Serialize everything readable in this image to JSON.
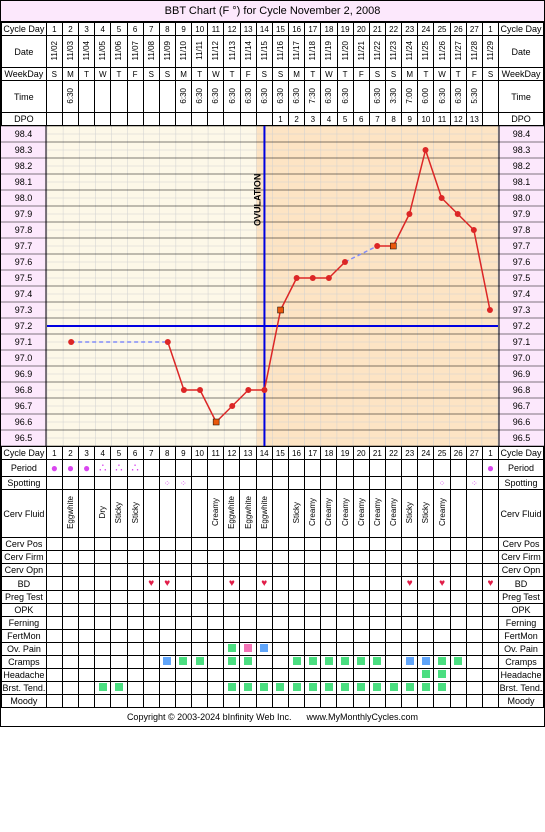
{
  "title": "BBT Chart (F °) for Cycle November 2, 2008",
  "row_labels": {
    "cycle_day": "Cycle Day",
    "date": "Date",
    "weekday": "WeekDay",
    "time": "Time",
    "dpo": "DPO",
    "period": "Period",
    "spotting": "Spotting",
    "cerv_fluid": "Cerv Fluid",
    "cerv_pos": "Cerv Pos",
    "cerv_firm": "Cerv Firm",
    "cerv_opn": "Cerv Opn",
    "bd": "BD",
    "preg_test": "Preg Test",
    "opk": "OPK",
    "ferning": "Ferning",
    "fertmon": "FertMon",
    "ov_pain": "Ov. Pain",
    "cramps": "Cramps",
    "headache": "Headache",
    "brst_tend": "Brst. Tend.",
    "moody": "Moody"
  },
  "cycle_days": [
    "1",
    "2",
    "3",
    "4",
    "5",
    "6",
    "7",
    "8",
    "9",
    "10",
    "11",
    "12",
    "13",
    "14",
    "15",
    "16",
    "17",
    "18",
    "19",
    "20",
    "21",
    "22",
    "23",
    "24",
    "25",
    "26",
    "27",
    "1"
  ],
  "dates": [
    "11/02",
    "11/03",
    "11/04",
    "11/05",
    "11/06",
    "11/07",
    "11/08",
    "11/09",
    "11/10",
    "11/11",
    "11/12",
    "11/13",
    "11/14",
    "11/15",
    "11/16",
    "11/17",
    "11/18",
    "11/19",
    "11/20",
    "11/21",
    "11/22",
    "11/23",
    "11/24",
    "11/25",
    "11/26",
    "11/27",
    "11/28",
    "11/29"
  ],
  "weekdays": [
    "S",
    "M",
    "T",
    "W",
    "T",
    "F",
    "S",
    "S",
    "M",
    "T",
    "W",
    "T",
    "F",
    "S",
    "S",
    "M",
    "T",
    "W",
    "T",
    "F",
    "S",
    "S",
    "M",
    "T",
    "W",
    "T",
    "F",
    "S"
  ],
  "times": [
    "",
    "6:30",
    "",
    "",
    "",
    "",
    "",
    "",
    "6:30",
    "6:30",
    "6:30",
    "6:30",
    "6:30",
    "6:30",
    "6:30",
    "6:30",
    "7:30",
    "6:30",
    "6:30",
    "",
    "6:30",
    "3:30",
    "7:00",
    "6:00",
    "6:30",
    "6:30",
    "5:30",
    ""
  ],
  "dpo": [
    "",
    "",
    "",
    "",
    "",
    "",
    "",
    "",
    "",
    "",
    "",
    "",
    "",
    "",
    "1",
    "2",
    "3",
    "4",
    "5",
    "6",
    "7",
    "8",
    "9",
    "10",
    "11",
    "12",
    "13",
    ""
  ],
  "temps_axis": [
    "98.4",
    "98.3",
    "98.2",
    "98.1",
    "98.0",
    "97.9",
    "97.8",
    "97.7",
    "97.6",
    "97.5",
    "97.4",
    "97.3",
    "97.2",
    "97.1",
    "97.0",
    "96.9",
    "96.8",
    "96.7",
    "96.6",
    "96.5"
  ],
  "temp_points": [
    {
      "day": 2,
      "temp": 97.1,
      "type": "dot"
    },
    {
      "day": 8,
      "temp": 97.1,
      "type": "dot"
    },
    {
      "day": 9,
      "temp": 96.8,
      "type": "dot"
    },
    {
      "day": 10,
      "temp": 96.8,
      "type": "dot"
    },
    {
      "day": 11,
      "temp": 96.6,
      "type": "square"
    },
    {
      "day": 12,
      "temp": 96.7,
      "type": "dot"
    },
    {
      "day": 13,
      "temp": 96.8,
      "type": "dot"
    },
    {
      "day": 14,
      "temp": 96.8,
      "type": "dot"
    },
    {
      "day": 15,
      "temp": 97.3,
      "type": "square"
    },
    {
      "day": 16,
      "temp": 97.5,
      "type": "dot"
    },
    {
      "day": 17,
      "temp": 97.5,
      "type": "dot"
    },
    {
      "day": 18,
      "temp": 97.5,
      "type": "dot"
    },
    {
      "day": 19,
      "temp": 97.6,
      "type": "dot"
    },
    {
      "day": 21,
      "temp": 97.7,
      "type": "dot"
    },
    {
      "day": 22,
      "temp": 97.7,
      "type": "square"
    },
    {
      "day": 23,
      "temp": 97.9,
      "type": "dot"
    },
    {
      "day": 24,
      "temp": 98.3,
      "type": "dot"
    },
    {
      "day": 25,
      "temp": 98.0,
      "type": "dot"
    },
    {
      "day": 26,
      "temp": 97.9,
      "type": "dot"
    },
    {
      "day": 27,
      "temp": 97.8,
      "type": "dot"
    },
    {
      "day": 28,
      "temp": 97.3,
      "type": "dot"
    }
  ],
  "ovulation_day": 14,
  "ovulation_label": "OVULATION",
  "coverline": 97.2,
  "chart_style": {
    "temp_min": 96.5,
    "temp_max": 98.4,
    "dot_color": "#dc2626",
    "dot_radius": 3,
    "square_color": "#ea580c",
    "square_size": 6,
    "dashed_color": "#818cf8",
    "solid_color": "#dc2626",
    "coverline_color": "#0000e0",
    "ovline_color": "#0000e0",
    "grid_color": "#d0d0d0",
    "bg_left": "#fdf8e8",
    "bg_right": "#fde4c4"
  },
  "period": [
    "●",
    "●",
    "●",
    "∴",
    "∴",
    "∴",
    "",
    "",
    "",
    "",
    "",
    "",
    "",
    "",
    "",
    "",
    "",
    "",
    "",
    "",
    "",
    "",
    "",
    "",
    "",
    "",
    "",
    "●"
  ],
  "spotting": [
    "",
    "",
    "",
    "",
    "",
    "",
    "",
    "⠿",
    "⠿",
    "",
    "",
    "",
    "",
    "",
    "",
    "",
    "",
    "",
    "",
    "",
    "",
    "",
    "",
    "",
    "⠿",
    "",
    "⠿",
    ""
  ],
  "cerv_fluid": [
    "",
    "Eggwhite",
    "",
    "Dry",
    "Sticky",
    "Sticky",
    "",
    "",
    "",
    "",
    "Creamy",
    "Eggwhite",
    "Eggwhite",
    "Eggwhite",
    "",
    "Sticky",
    "Creamy",
    "Creamy",
    "Creamy",
    "Creamy",
    "Creamy",
    "Creamy",
    "Sticky",
    "Sticky",
    "Creamy",
    "",
    "",
    ""
  ],
  "bd": [
    "",
    "",
    "",
    "",
    "",
    "",
    "♥",
    "♥",
    "",
    "",
    "",
    "♥",
    "",
    "♥",
    "",
    "",
    "",
    "",
    "",
    "",
    "",
    "",
    "♥",
    "",
    "♥",
    "",
    "",
    "♥"
  ],
  "ov_pain": [
    "",
    "",
    "",
    "",
    "",
    "",
    "",
    "",
    "",
    "",
    "",
    "g",
    "p",
    "b",
    "",
    "",
    "",
    "",
    "",
    "",
    "",
    "",
    "",
    "",
    "",
    "",
    "",
    ""
  ],
  "cramps": [
    "",
    "",
    "",
    "",
    "",
    "",
    "",
    "b",
    "g",
    "g",
    "",
    "g",
    "g",
    "",
    "",
    "g",
    "g",
    "g",
    "g",
    "g",
    "g",
    "",
    "b",
    "b",
    "g",
    "g",
    "",
    ""
  ],
  "headache": [
    "",
    "",
    "",
    "",
    "",
    "",
    "",
    "",
    "",
    "",
    "",
    "",
    "",
    "",
    "",
    "",
    "",
    "",
    "",
    "",
    "",
    "",
    "",
    "g",
    "g",
    "",
    "",
    ""
  ],
  "brst_tend": [
    "",
    "",
    "",
    "g",
    "g",
    "",
    "",
    "",
    "",
    "",
    "",
    "g",
    "g",
    "g",
    "g",
    "g",
    "g",
    "g",
    "g",
    "g",
    "g",
    "g",
    "g",
    "g",
    "g",
    "",
    "",
    ""
  ],
  "footer_copyright": "Copyright © 2003-2024 bInfinity Web Inc.",
  "footer_url": "www.MyMonthlyCycles.com"
}
